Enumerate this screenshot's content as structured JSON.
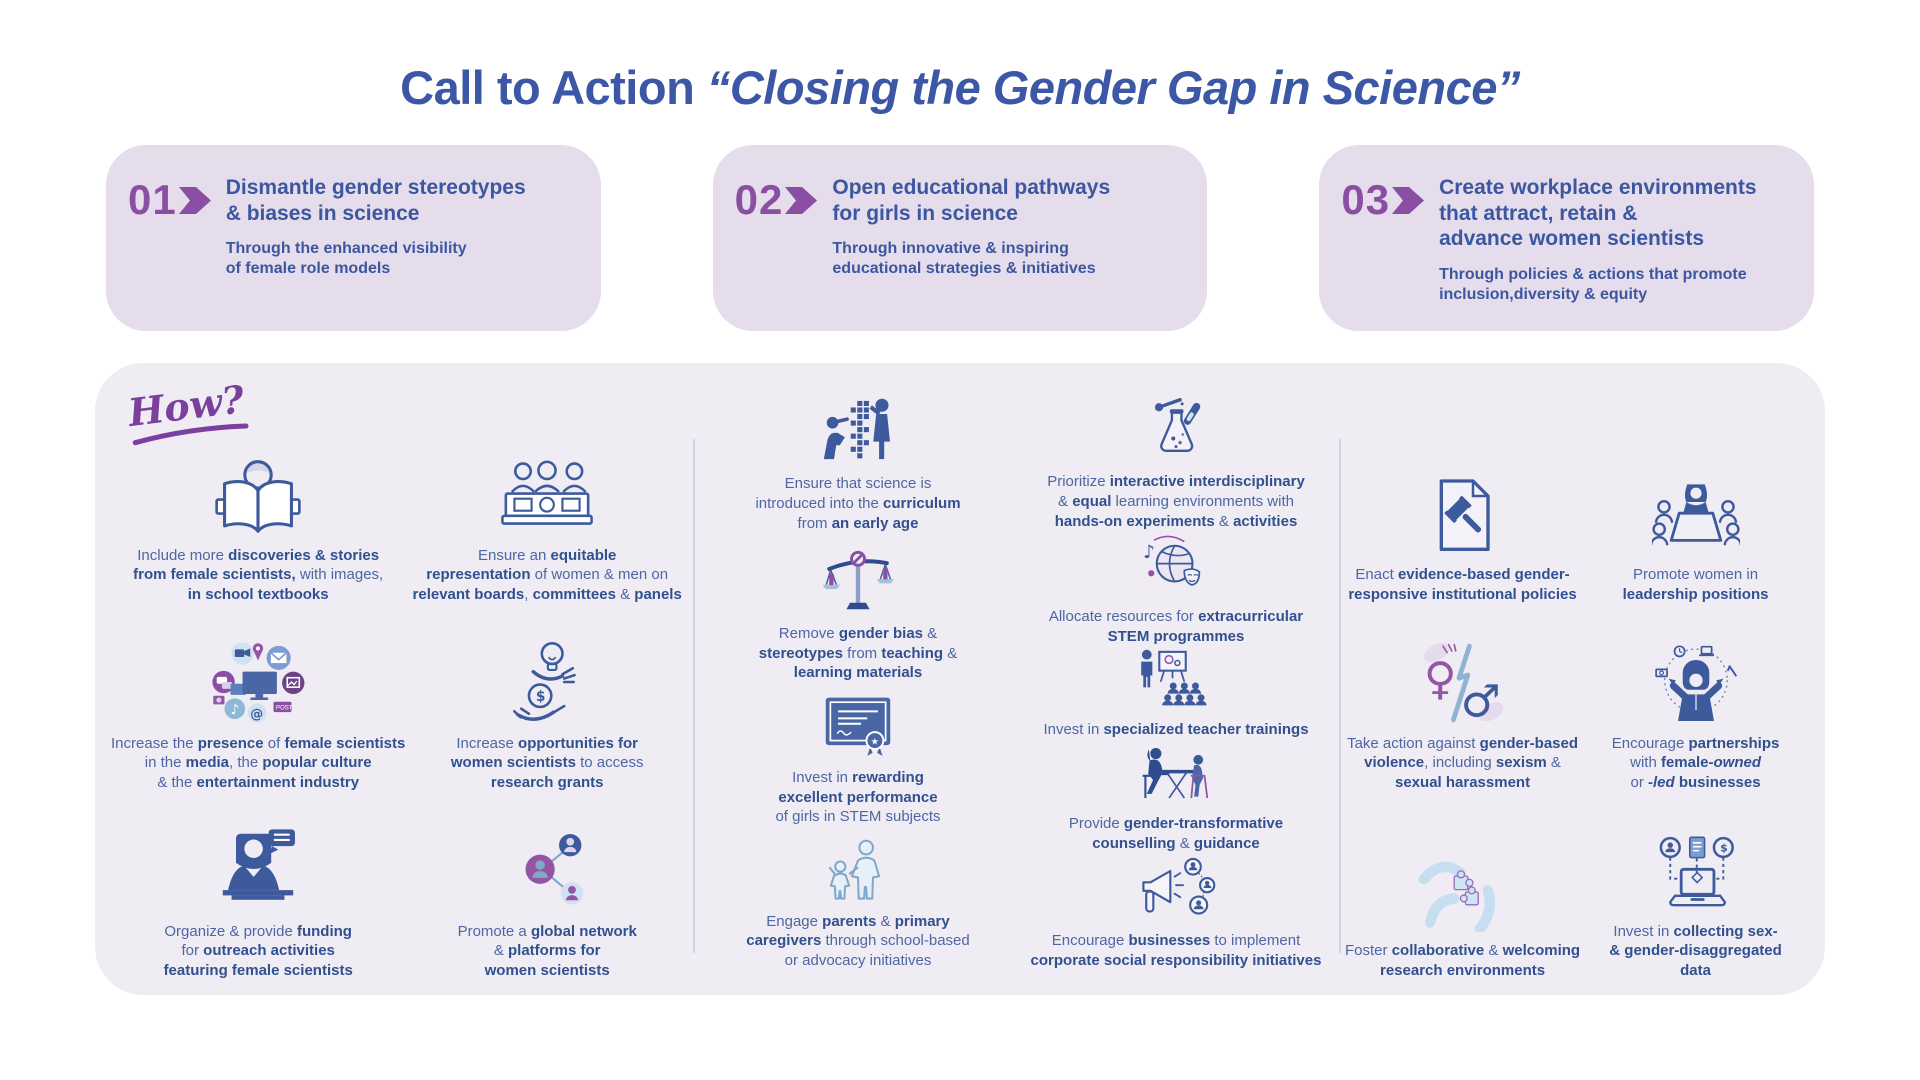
{
  "title": {
    "prefix": "Call to Action ",
    "quote": "“Closing the Gender Gap in Science”"
  },
  "colors": {
    "title_blue": "#3b57a5",
    "accent_purple": "#8a4fa3",
    "pillar_bg": "#e5dcec",
    "how_bg": "#efecf4",
    "text_blue": "#4e66a4",
    "bold_blue": "#31508f"
  },
  "pillars": [
    {
      "number": "01",
      "title": "Dismantle gender stereotypes\n& biases in science",
      "subtitle": "Through the enhanced visibility\nof female role models"
    },
    {
      "number": "02",
      "title": "Open educational pathways\nfor girls in science",
      "subtitle": "Through innovative & inspiring\neducational strategies & initiatives"
    },
    {
      "number": "03",
      "title": "Create workplace environments\nthat attract, retain &\nadvance women scientists",
      "subtitle": "Through policies & actions that promote\ninclusion,diversity & equity"
    }
  ],
  "how": {
    "label": "How?",
    "col1": [
      {
        "icon": "textbooks-icon",
        "text": "Include more **discoveries & stories**\n**from female scientists,** with images,\n**in school textbooks**"
      },
      {
        "icon": "panel-icon",
        "text": "Ensure an **equitable**\n**representation** of women & men on\n**relevant boards**, **committees** & **panels**"
      },
      {
        "icon": "media-icon",
        "text": "Increase the **presence** of **female scientists**\nin the **media**, the **popular culture**\n& the **entertainment industry**"
      },
      {
        "icon": "grants-icon",
        "text": "Increase **opportunities for**\n**women scientists** to access\n**research grants**"
      },
      {
        "icon": "outreach-icon",
        "text": "Organize & provide **funding**\nfor **outreach activities**\n**featuring female scientists**"
      },
      {
        "icon": "network-icon",
        "text": "Promote a **global network**\n& **platforms for**\n**women scientists**"
      }
    ],
    "col2a": [
      {
        "icon": "curriculum-icon",
        "text": "Ensure that science is\nintroduced into the **curriculum**\nfrom **an early age**"
      },
      {
        "icon": "bias-icon",
        "text": "Remove **gender bias** &\n**stereotypes** from **teaching** &\n**learning materials**"
      },
      {
        "icon": "performance-icon",
        "text": "Invest in **rewarding**\n**excellent performance**\nof girls in STEM subjects"
      },
      {
        "icon": "caregivers-icon",
        "text": "Engage **parents** & **primary**\n**caregivers** through school-based\nor advocacy initiatives"
      }
    ],
    "col2b": [
      {
        "icon": "experiments-icon",
        "text": "Prioritize **interactive interdisciplinary**\n& **equal** learning environments with\n**hands-on experiments** & **activities**"
      },
      {
        "icon": "stem-extracurricular-icon",
        "text": "Allocate resources for **extracurricular**\n**STEM programmes**"
      },
      {
        "icon": "teacher-icon",
        "text": "Invest in **specialized teacher trainings**"
      },
      {
        "icon": "counselling-icon",
        "text": "Provide **gender-transformative**\n**counselling** & **guidance**"
      },
      {
        "icon": "csr-icon",
        "text": "Encourage **businesses** to implement\n**corporate social responsibility initiatives**"
      }
    ],
    "col3": [
      {
        "icon": "policies-icon",
        "text": "Enact **evidence-based gender-**\n**responsive institutional policies**"
      },
      {
        "icon": "leadership-icon",
        "text": "Promote women in\n**leadership positions**"
      },
      {
        "icon": "violence-icon",
        "text": "Take action against **gender-based**\n**violence**, including **sexism** &\n**sexual harassment**"
      },
      {
        "icon": "partnerships-icon",
        "text": "Encourage **partnerships**\nwith **female-_owned_**\nor **_-led_ businesses**"
      },
      {
        "icon": "collaboration-icon",
        "text": "Foster **collaborative** & **welcoming**\n**research environments**"
      },
      {
        "icon": "data-icon",
        "text": "Invest in **collecting sex-**\n**& gender-disaggregated**\n**data**"
      }
    ]
  }
}
